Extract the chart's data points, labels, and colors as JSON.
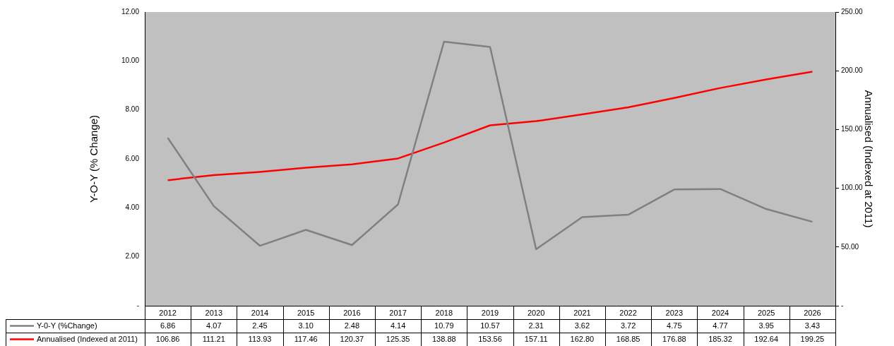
{
  "chart_data": {
    "type": "line",
    "categories": [
      "2012",
      "2013",
      "2014",
      "2015",
      "2016",
      "2017",
      "2018",
      "2019",
      "2020",
      "2021",
      "2022",
      "2023",
      "2024",
      "2025",
      "2026"
    ],
    "ylabel": "Y-O-Y (% Change)",
    "y2label": "Annualised (Indexed at 2011)",
    "ylim": [
      0,
      12
    ],
    "yticks": [
      {
        "value": 0,
        "label": "-"
      },
      {
        "value": 2,
        "label": "2.00"
      },
      {
        "value": 4,
        "label": "4.00"
      },
      {
        "value": 6,
        "label": "6.00"
      },
      {
        "value": 8,
        "label": "8.00"
      },
      {
        "value": 10,
        "label": "10.00"
      },
      {
        "value": 12,
        "label": "12.00"
      }
    ],
    "y2lim": [
      0,
      250
    ],
    "y2ticks": [
      {
        "value": 0,
        "label": "-"
      },
      {
        "value": 50,
        "label": "50.00"
      },
      {
        "value": 100,
        "label": "100.00"
      },
      {
        "value": 150,
        "label": "150.00"
      },
      {
        "value": 200,
        "label": "200.00"
      },
      {
        "value": 250,
        "label": "250.00"
      }
    ],
    "grid": false,
    "legend": "bottom",
    "marker": "none",
    "line_style": "solid",
    "series": [
      {
        "name": "Y-0-Y (%Change)",
        "color": "#808080",
        "values": [
          6.86,
          4.07,
          2.45,
          3.1,
          2.48,
          4.14,
          10.79,
          10.57,
          2.31,
          3.62,
          3.72,
          4.75,
          4.77,
          3.95,
          3.43
        ],
        "value_labels": [
          "6.86",
          "4.07",
          "2.45",
          "3.10",
          "2.48",
          "4.14",
          "10.79",
          "10.57",
          "2.31",
          "3.62",
          "3.72",
          "4.75",
          "4.77",
          "3.95",
          "3.43"
        ]
      },
      {
        "name": "Annualised (Indexed at 2011)",
        "color": "#ff0000",
        "axis": "y2",
        "values": [
          106.86,
          111.21,
          113.93,
          117.46,
          120.37,
          125.35,
          138.88,
          153.56,
          157.11,
          162.8,
          168.85,
          176.88,
          185.32,
          192.64,
          199.25
        ],
        "value_labels": [
          "106.86",
          "111.21",
          "113.93",
          "117.46",
          "120.37",
          "125.35",
          "138.88",
          "153.56",
          "157.11",
          "162.80",
          "168.85",
          "176.88",
          "185.32",
          "192.64",
          "199.25"
        ]
      }
    ]
  }
}
